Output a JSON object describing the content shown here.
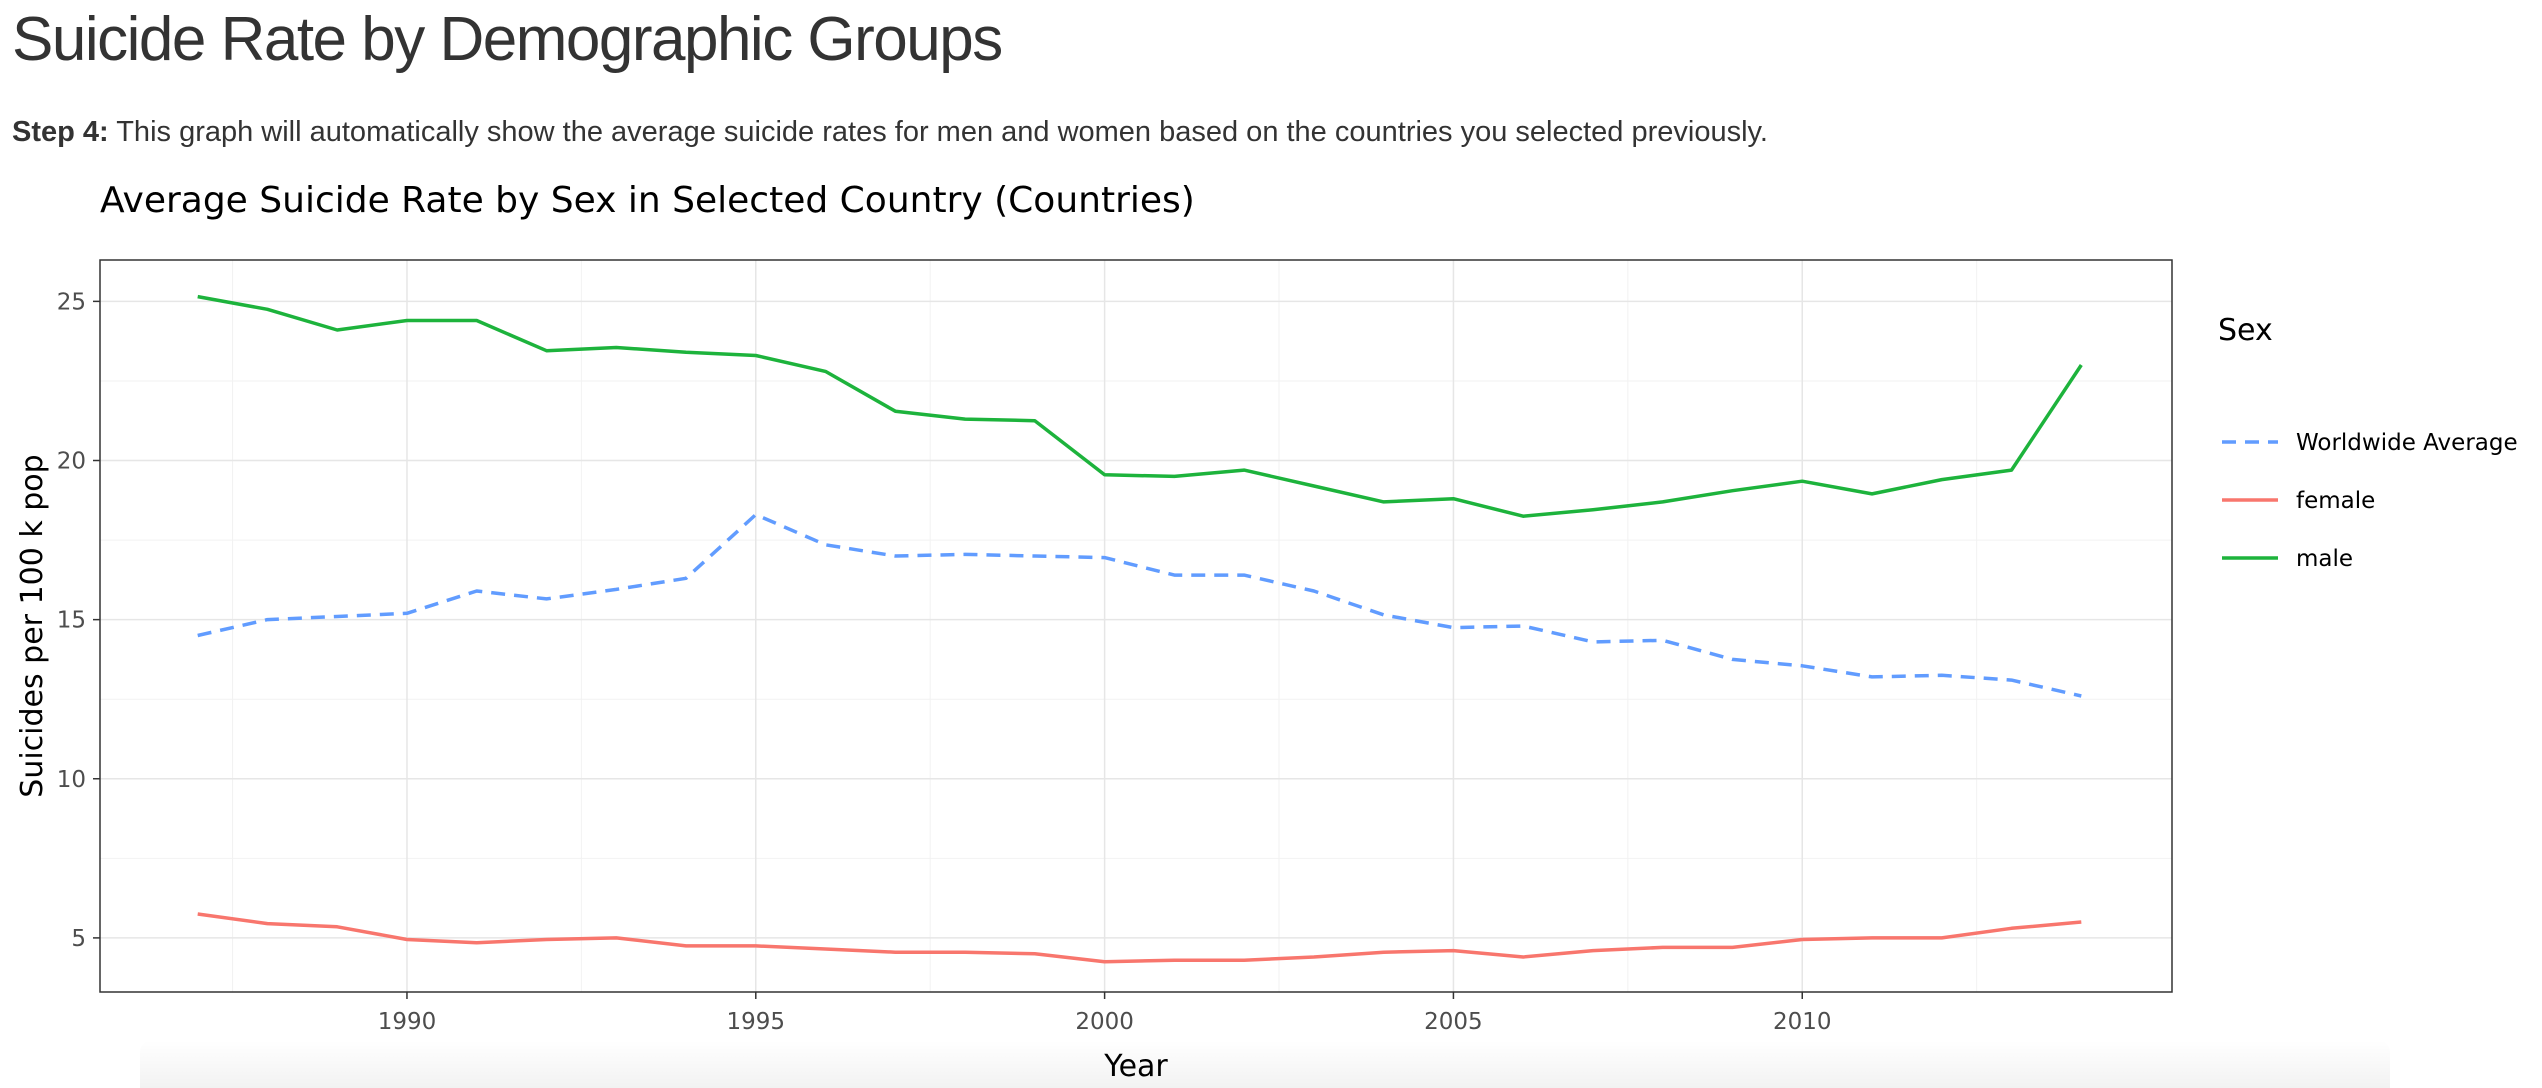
{
  "page": {
    "title": "Suicide Rate by Demographic Groups",
    "step_label": "Step 4:",
    "step_text": " This graph will automatically show the average suicide rates for men and women based on the countries you selected previously."
  },
  "chart_data": {
    "type": "line",
    "title": "Average Suicide Rate by Sex in Selected Country (Countries)",
    "xlabel": "Year",
    "ylabel": "Suicides per 100 k pop",
    "xlim": [
      1985.6,
      2015.3
    ],
    "ylim": [
      3.3,
      26.3
    ],
    "xticks": [
      1990,
      1995,
      2000,
      2005,
      2010
    ],
    "yticks": [
      5,
      10,
      15,
      20,
      25
    ],
    "grid": true,
    "legend": {
      "title": "Sex",
      "placement": "right"
    },
    "x": [
      1987,
      1988,
      1989,
      1990,
      1991,
      1992,
      1993,
      1994,
      1995,
      1996,
      1997,
      1998,
      1999,
      2000,
      2001,
      2002,
      2003,
      2004,
      2005,
      2006,
      2007,
      2008,
      2009,
      2010,
      2011,
      2012,
      2013,
      2014
    ],
    "series": [
      {
        "name": "Worldwide Average",
        "color": "#619CFF",
        "dashed": true,
        "values": [
          14.5,
          15.0,
          15.1,
          15.2,
          15.9,
          15.65,
          15.95,
          16.3,
          18.3,
          17.35,
          17.0,
          17.05,
          17.0,
          16.95,
          16.4,
          16.4,
          15.9,
          15.15,
          14.75,
          14.8,
          14.3,
          14.35,
          13.75,
          13.55,
          13.2,
          13.25,
          13.1,
          12.6
        ]
      },
      {
        "name": "female",
        "color": "#F8766D",
        "dashed": false,
        "values": [
          5.75,
          5.45,
          5.35,
          4.95,
          4.85,
          4.95,
          5.0,
          4.75,
          4.75,
          4.65,
          4.55,
          4.55,
          4.5,
          4.25,
          4.3,
          4.3,
          4.4,
          4.55,
          4.6,
          4.4,
          4.6,
          4.7,
          4.7,
          4.95,
          5.0,
          5.0,
          5.3,
          5.5
        ]
      },
      {
        "name": "male",
        "color": "#1DB33C",
        "dashed": false,
        "values": [
          25.15,
          24.75,
          24.1,
          24.4,
          24.4,
          23.45,
          23.55,
          23.4,
          23.3,
          22.8,
          21.55,
          21.3,
          21.25,
          19.55,
          19.5,
          19.7,
          19.2,
          18.7,
          18.8,
          18.25,
          18.45,
          18.7,
          19.05,
          19.35,
          18.95,
          19.4,
          19.7,
          23.0
        ]
      }
    ]
  }
}
